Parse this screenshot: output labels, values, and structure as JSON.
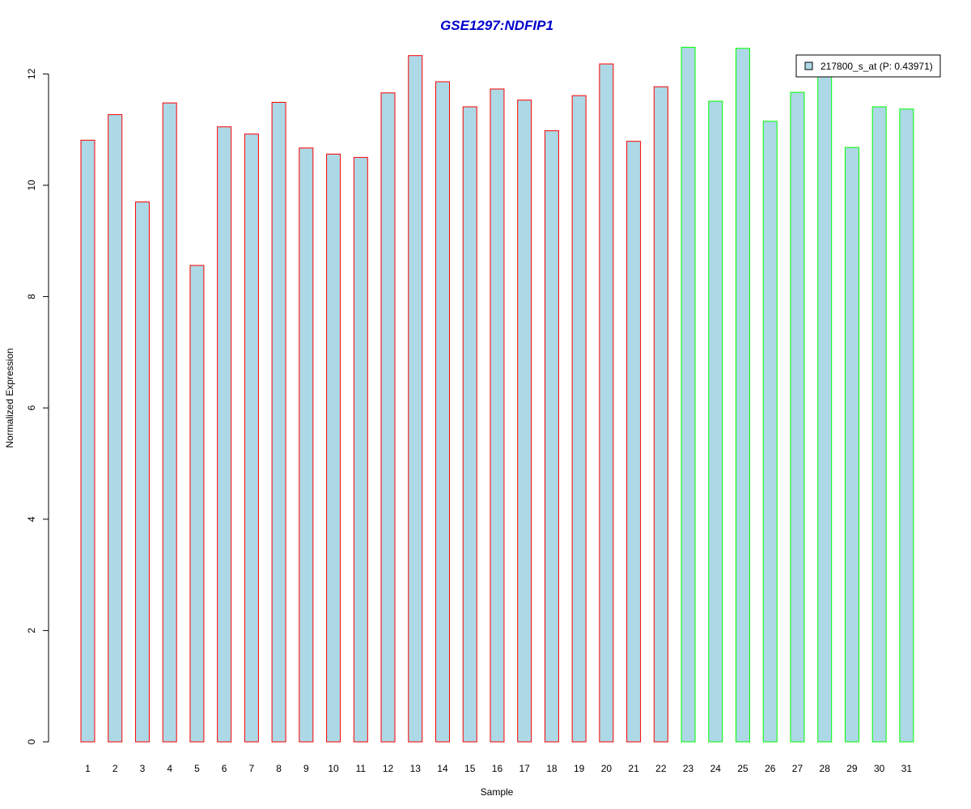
{
  "colors": {
    "title": "#0000cc",
    "bar_fill": "#add8e6",
    "group1_border": "#ff0000",
    "group2_border": "#00ff00",
    "axis": "#000000"
  },
  "chart_data": {
    "type": "bar",
    "title": "GSE1297:NDFIP1",
    "xlabel": "Sample",
    "ylabel": "Normalized Expression",
    "ylim": [
      0,
      12.5
    ],
    "yticks": [
      0,
      2,
      4,
      6,
      8,
      10,
      12
    ],
    "grid": false,
    "legend": {
      "label": "217800_s_at (P: 0.43971)",
      "placement": "top-right"
    },
    "categories": [
      "1",
      "2",
      "3",
      "4",
      "5",
      "6",
      "7",
      "8",
      "9",
      "10",
      "11",
      "12",
      "13",
      "14",
      "15",
      "16",
      "17",
      "18",
      "19",
      "20",
      "21",
      "22",
      "23",
      "24",
      "25",
      "26",
      "27",
      "28",
      "29",
      "30",
      "31"
    ],
    "values": [
      10.81,
      11.27,
      9.7,
      11.48,
      8.56,
      11.05,
      10.92,
      11.49,
      10.67,
      10.56,
      10.5,
      11.66,
      12.33,
      11.86,
      11.41,
      11.73,
      11.53,
      10.98,
      11.61,
      12.18,
      10.79,
      11.77,
      12.48,
      11.51,
      12.46,
      11.15,
      11.67,
      11.96,
      10.68,
      11.41,
      11.37
    ],
    "groups": [
      "group1",
      "group1",
      "group1",
      "group1",
      "group1",
      "group1",
      "group1",
      "group1",
      "group1",
      "group1",
      "group1",
      "group1",
      "group1",
      "group1",
      "group1",
      "group1",
      "group1",
      "group1",
      "group1",
      "group1",
      "group1",
      "group1",
      "group2",
      "group2",
      "group2",
      "group2",
      "group2",
      "group2",
      "group2",
      "group2",
      "group2"
    ]
  }
}
